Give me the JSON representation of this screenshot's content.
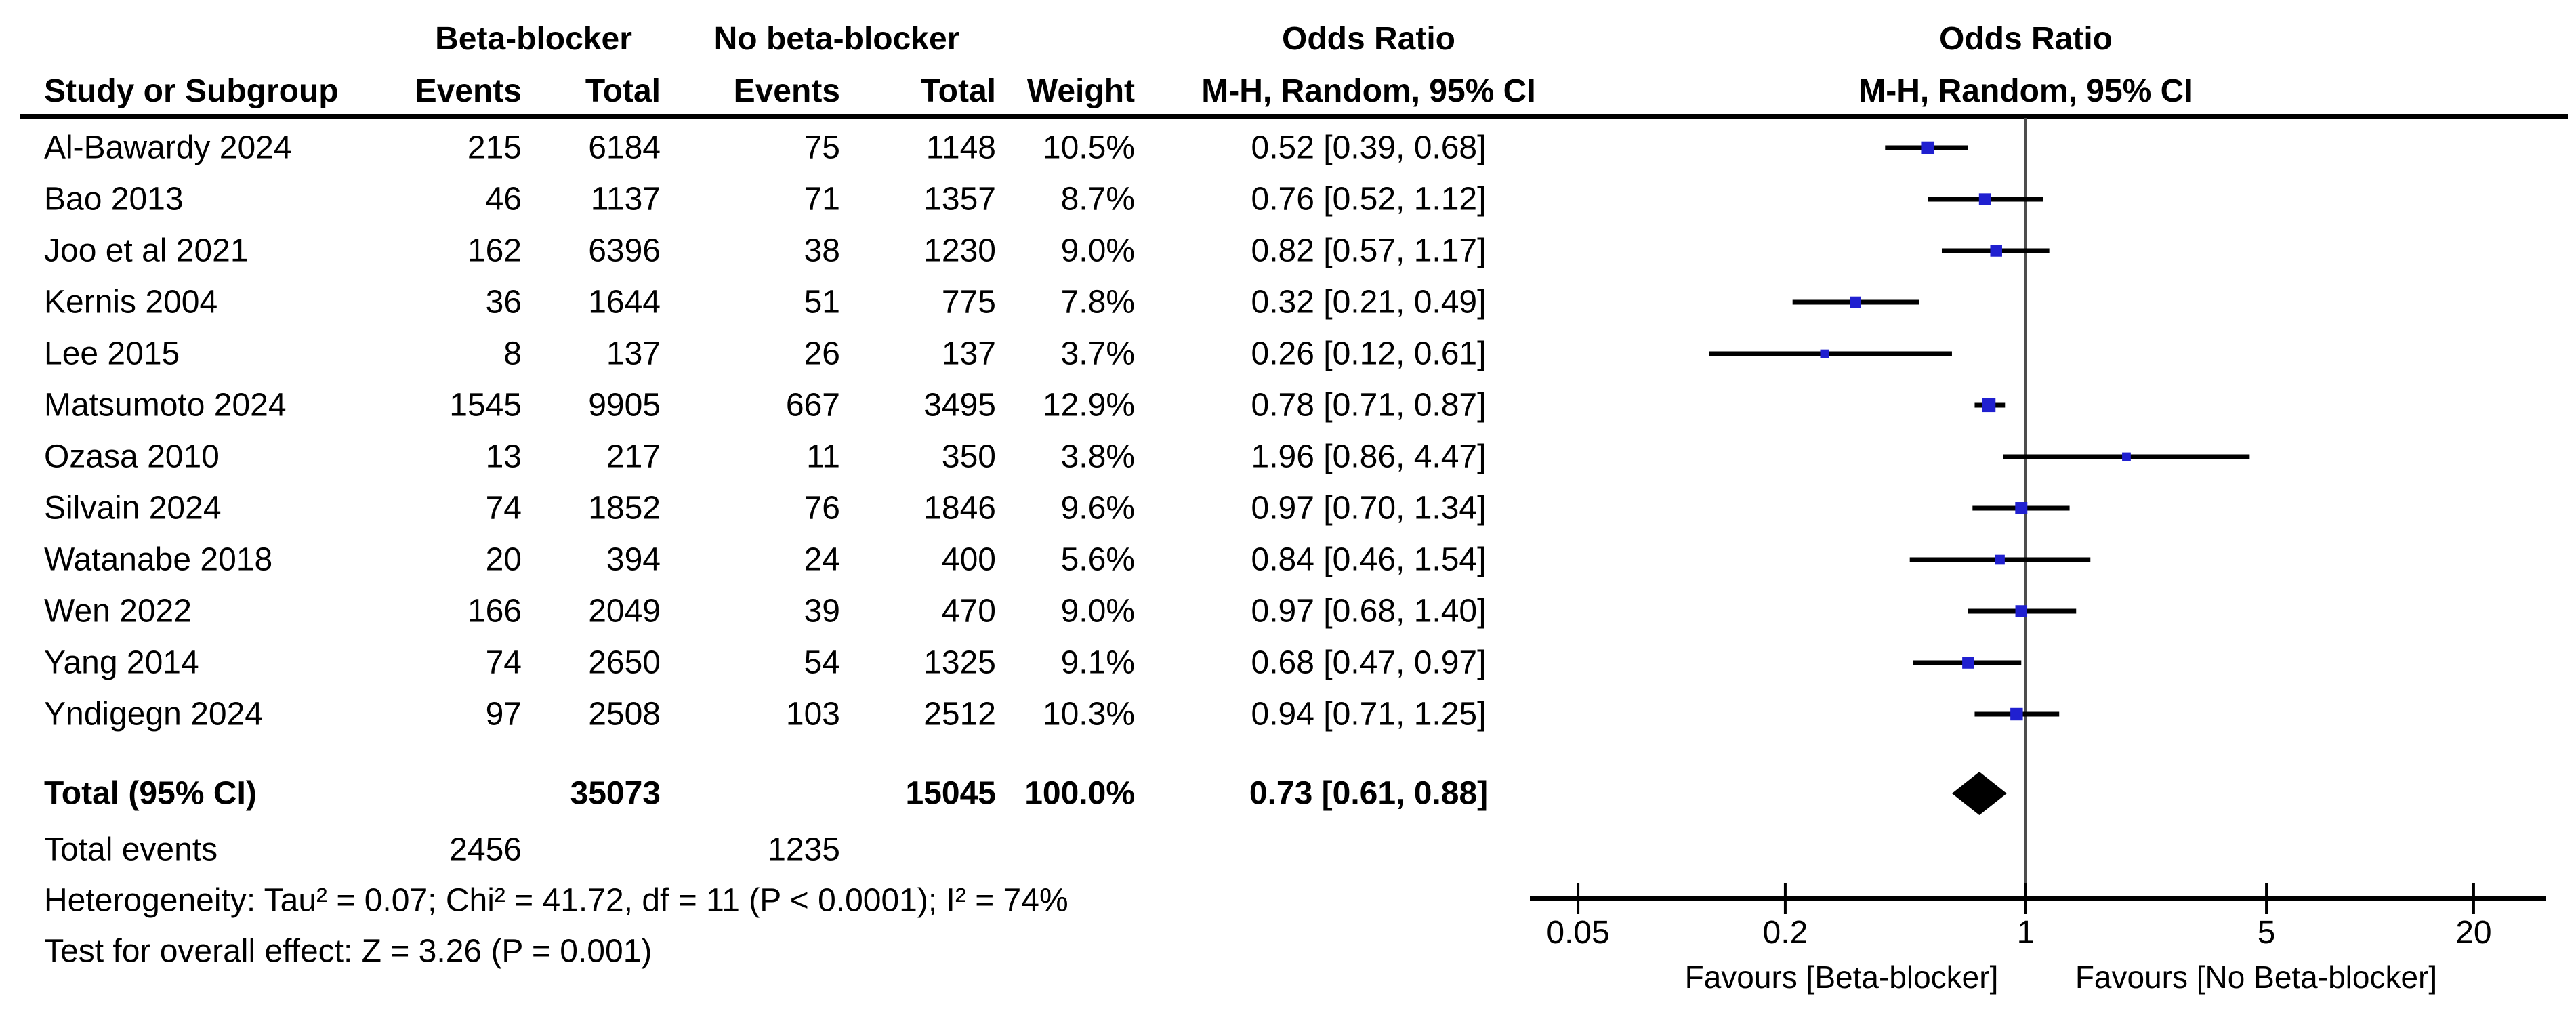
{
  "table": {
    "col_group_bb": "Beta-blocker",
    "col_group_nbb": "No beta-blocker",
    "col_study": "Study or Subgroup",
    "col_events_bb": "Events",
    "col_total_bb": "Total",
    "col_events_nbb": "Events",
    "col_total_nbb": "Total",
    "col_weight": "Weight",
    "col_or_line1": "Odds Ratio",
    "col_or_line2": "M-H, Random, 95% CI",
    "plot_header_line1": "Odds Ratio",
    "plot_header_line2": "M-H, Random, 95% CI",
    "total_label": "Total (95% CI)",
    "total_bb_total": "35073",
    "total_nbb_total": "15045",
    "total_weight": "100.0%",
    "total_or_text": "0.73 [0.61, 0.88]",
    "total_events_label": "Total events",
    "total_events_bb": "2456",
    "total_events_nbb": "1235",
    "heterogeneity": "Heterogeneity: Tau² = 0.07; Chi² = 41.72, df = 11 (P < 0.0001); I² = 74%",
    "overall_effect": "Test for overall effect: Z = 3.26 (P = 0.001)"
  },
  "chart_data": {
    "type": "forest",
    "effect_measure": "Odds Ratio",
    "model": "M-H, Random, 95% CI",
    "x_scale": "log",
    "x_ticks": [
      0.05,
      0.2,
      1,
      5,
      20
    ],
    "x_range": [
      0.05,
      20
    ],
    "null_line": 1,
    "favours_left": "Favours [Beta-blocker]",
    "favours_right": "Favours [No Beta-blocker]",
    "marker_color": "#2020D0",
    "line_color": "#000000",
    "null_line_color": "#4D4D4D",
    "studies": [
      {
        "name": "Al-Bawardy 2024",
        "bb_events": 215,
        "bb_total": 6184,
        "nbb_events": 75,
        "nbb_total": 1148,
        "weight": 10.5,
        "weight_text": "10.5%",
        "or": 0.52,
        "ci_low": 0.39,
        "ci_high": 0.68,
        "or_text": "0.52 [0.39, 0.68]"
      },
      {
        "name": "Bao 2013",
        "bb_events": 46,
        "bb_total": 1137,
        "nbb_events": 71,
        "nbb_total": 1357,
        "weight": 8.7,
        "weight_text": "8.7%",
        "or": 0.76,
        "ci_low": 0.52,
        "ci_high": 1.12,
        "or_text": "0.76 [0.52, 1.12]"
      },
      {
        "name": "Joo et al 2021",
        "bb_events": 162,
        "bb_total": 6396,
        "nbb_events": 38,
        "nbb_total": 1230,
        "weight": 9.0,
        "weight_text": "9.0%",
        "or": 0.82,
        "ci_low": 0.57,
        "ci_high": 1.17,
        "or_text": "0.82 [0.57, 1.17]"
      },
      {
        "name": "Kernis 2004",
        "bb_events": 36,
        "bb_total": 1644,
        "nbb_events": 51,
        "nbb_total": 775,
        "weight": 7.8,
        "weight_text": "7.8%",
        "or": 0.32,
        "ci_low": 0.21,
        "ci_high": 0.49,
        "or_text": "0.32 [0.21, 0.49]"
      },
      {
        "name": "Lee 2015",
        "bb_events": 8,
        "bb_total": 137,
        "nbb_events": 26,
        "nbb_total": 137,
        "weight": 3.7,
        "weight_text": "3.7%",
        "or": 0.26,
        "ci_low": 0.12,
        "ci_high": 0.61,
        "or_text": "0.26 [0.12, 0.61]"
      },
      {
        "name": "Matsumoto 2024",
        "bb_events": 1545,
        "bb_total": 9905,
        "nbb_events": 667,
        "nbb_total": 3495,
        "weight": 12.9,
        "weight_text": "12.9%",
        "or": 0.78,
        "ci_low": 0.71,
        "ci_high": 0.87,
        "or_text": "0.78 [0.71, 0.87]"
      },
      {
        "name": "Ozasa 2010",
        "bb_events": 13,
        "bb_total": 217,
        "nbb_events": 11,
        "nbb_total": 350,
        "weight": 3.8,
        "weight_text": "3.8%",
        "or": 1.96,
        "ci_low": 0.86,
        "ci_high": 4.47,
        "or_text": "1.96 [0.86, 4.47]"
      },
      {
        "name": "Silvain 2024",
        "bb_events": 74,
        "bb_total": 1852,
        "nbb_events": 76,
        "nbb_total": 1846,
        "weight": 9.6,
        "weight_text": "9.6%",
        "or": 0.97,
        "ci_low": 0.7,
        "ci_high": 1.34,
        "or_text": "0.97 [0.70, 1.34]"
      },
      {
        "name": "Watanabe 2018",
        "bb_events": 20,
        "bb_total": 394,
        "nbb_events": 24,
        "nbb_total": 400,
        "weight": 5.6,
        "weight_text": "5.6%",
        "or": 0.84,
        "ci_low": 0.46,
        "ci_high": 1.54,
        "or_text": "0.84 [0.46, 1.54]"
      },
      {
        "name": "Wen 2022",
        "bb_events": 166,
        "bb_total": 2049,
        "nbb_events": 39,
        "nbb_total": 470,
        "weight": 9.0,
        "weight_text": "9.0%",
        "or": 0.97,
        "ci_low": 0.68,
        "ci_high": 1.4,
        "or_text": "0.97 [0.68, 1.40]"
      },
      {
        "name": "Yang 2014",
        "bb_events": 74,
        "bb_total": 2650,
        "nbb_events": 54,
        "nbb_total": 1325,
        "weight": 9.1,
        "weight_text": "9.1%",
        "or": 0.68,
        "ci_low": 0.47,
        "ci_high": 0.97,
        "or_text": "0.68 [0.47, 0.97]"
      },
      {
        "name": "Yndigegn 2024",
        "bb_events": 97,
        "bb_total": 2508,
        "nbb_events": 103,
        "nbb_total": 2512,
        "weight": 10.3,
        "weight_text": "10.3%",
        "or": 0.94,
        "ci_low": 0.71,
        "ci_high": 1.25,
        "or_text": "0.94 [0.71, 1.25]"
      }
    ],
    "total": {
      "or": 0.73,
      "ci_low": 0.61,
      "ci_high": 0.88,
      "weight": 100.0
    }
  }
}
